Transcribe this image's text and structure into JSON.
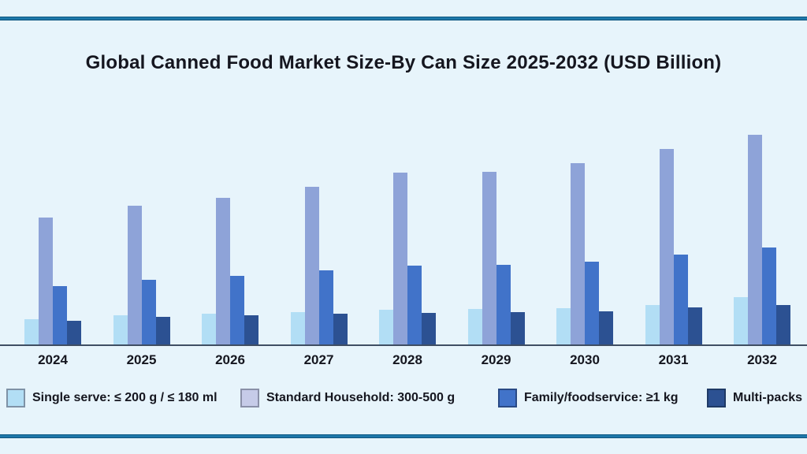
{
  "page": {
    "background_color": "#e7f4fb",
    "accent_rule_color": "#1e74a8",
    "axis_line_color": "#3f4e63",
    "text_color": "#15161f"
  },
  "chart_data": {
    "type": "bar",
    "title": "Global Canned Food Market Size-By Can Size 2025-2032 (USD Billion)",
    "xlabel": "",
    "ylabel": "",
    "y_axis": "unlabeled (no ticks or gridlines shown); values below are bar heights estimated in screen pixels",
    "grid": false,
    "legend_position": "bottom",
    "categories": [
      "2024",
      "2025",
      "2026",
      "2027",
      "2028",
      "2029",
      "2030",
      "2031",
      "2032"
    ],
    "series": [
      {
        "name": "Single serve: ≤ 200 g / ≤ 180 ml",
        "color": "#b2def5",
        "legend_swatch_color": "#b2def5",
        "legend_swatch_border": "#7f92a6",
        "values": [
          32,
          37,
          39,
          41,
          44,
          45,
          46,
          50,
          60
        ]
      },
      {
        "name": "Standard Household: 300-500 g",
        "color": "#8ea3d8",
        "legend_swatch_color": "#c6cbe8",
        "legend_swatch_border": "#8a90a8",
        "values": [
          161,
          176,
          186,
          200,
          218,
          219,
          230,
          248,
          266
        ]
      },
      {
        "name": "Family/foodservice: ≥1 kg",
        "color": "#4173c9",
        "legend_swatch_color": "#4173c9",
        "legend_swatch_border": "#2a4a85",
        "values": [
          74,
          82,
          87,
          94,
          100,
          101,
          105,
          114,
          123
        ]
      },
      {
        "name": "Multi-packs",
        "color": "#2c5192",
        "legend_swatch_color": "#2c5192",
        "legend_swatch_border": "#1f3a66",
        "values": [
          30,
          35,
          37,
          39,
          40,
          41,
          42,
          47,
          50
        ]
      }
    ]
  }
}
